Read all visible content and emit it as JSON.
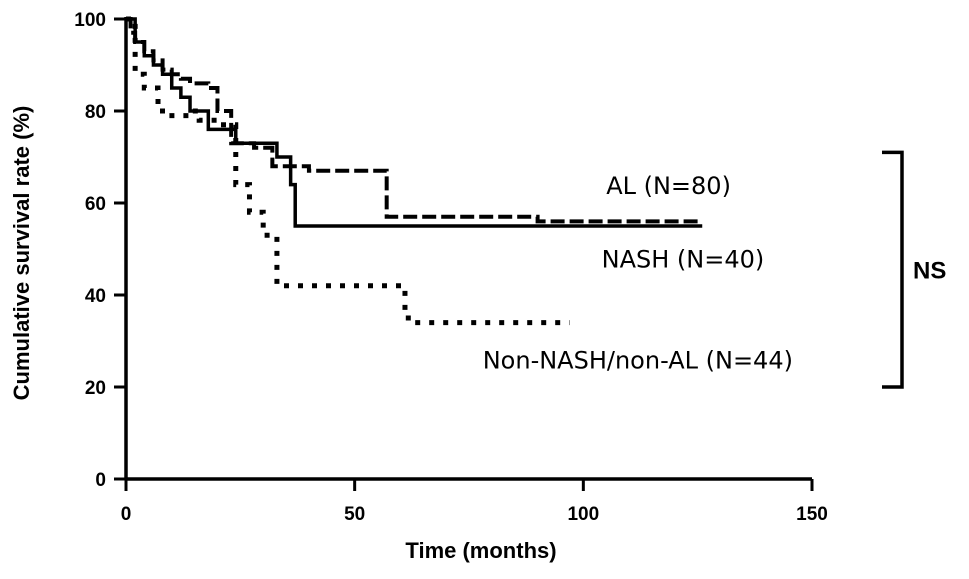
{
  "chart_data": {
    "type": "line",
    "title": "",
    "xlabel": "Time (months)",
    "ylabel": "Cumulative survival rate (%)",
    "xlim": [
      0,
      150
    ],
    "ylim": [
      0,
      100
    ],
    "xticks": [
      0,
      50,
      100,
      150
    ],
    "yticks": [
      0,
      20,
      40,
      60,
      80,
      100
    ],
    "grid": false,
    "series": [
      {
        "name": "AL (N=80)",
        "style": "dashed",
        "points": [
          [
            0,
            100
          ],
          [
            1,
            97
          ],
          [
            2,
            95
          ],
          [
            4,
            93
          ],
          [
            6,
            91
          ],
          [
            8,
            89
          ],
          [
            10,
            88
          ],
          [
            12,
            87
          ],
          [
            14,
            86
          ],
          [
            16,
            86
          ],
          [
            18,
            85
          ],
          [
            20,
            80
          ],
          [
            23,
            73
          ],
          [
            28,
            72
          ],
          [
            32,
            68
          ],
          [
            40,
            67
          ],
          [
            45,
            67
          ],
          [
            57,
            67
          ],
          [
            57,
            57
          ],
          [
            62,
            57
          ],
          [
            70,
            57
          ],
          [
            80,
            57
          ],
          [
            90,
            56
          ],
          [
            100,
            56
          ],
          [
            110,
            56
          ],
          [
            115,
            56
          ],
          [
            126,
            56
          ]
        ]
      },
      {
        "name": "NASH (N=40)",
        "style": "solid",
        "points": [
          [
            0,
            100
          ],
          [
            2,
            95
          ],
          [
            4,
            92
          ],
          [
            6,
            90
          ],
          [
            8,
            88
          ],
          [
            10,
            85
          ],
          [
            12,
            83
          ],
          [
            14,
            80
          ],
          [
            18,
            76
          ],
          [
            24,
            76
          ],
          [
            24,
            73
          ],
          [
            30,
            73
          ],
          [
            33,
            70
          ],
          [
            36,
            64
          ],
          [
            37,
            55
          ],
          [
            50,
            55
          ],
          [
            70,
            55
          ],
          [
            90,
            55
          ],
          [
            110,
            55
          ],
          [
            126,
            55
          ]
        ]
      },
      {
        "name": "Non-NASH/non-AL (N=44)",
        "style": "dotted",
        "points": [
          [
            0,
            100
          ],
          [
            2,
            88
          ],
          [
            4,
            85
          ],
          [
            7,
            80
          ],
          [
            9,
            79
          ],
          [
            14,
            80
          ],
          [
            16,
            78
          ],
          [
            20,
            77
          ],
          [
            24,
            72
          ],
          [
            24,
            64
          ],
          [
            27,
            58
          ],
          [
            30,
            53
          ],
          [
            33,
            42
          ],
          [
            45,
            42
          ],
          [
            55,
            42
          ],
          [
            61,
            40
          ],
          [
            61,
            35
          ],
          [
            63,
            34
          ],
          [
            75,
            34
          ],
          [
            85,
            34
          ],
          [
            97,
            34
          ]
        ]
      }
    ],
    "annotations": [
      {
        "text": "AL (N=80)",
        "x": 105,
        "y": 62
      },
      {
        "text": "NASH (N=40)",
        "x": 104,
        "y": 46
      },
      {
        "text": "Non-NASH/non-AL (N=44)",
        "x": 78,
        "y": 24
      }
    ],
    "bracket": {
      "text": "NS",
      "y_top": 71,
      "y_bottom": 20
    }
  }
}
